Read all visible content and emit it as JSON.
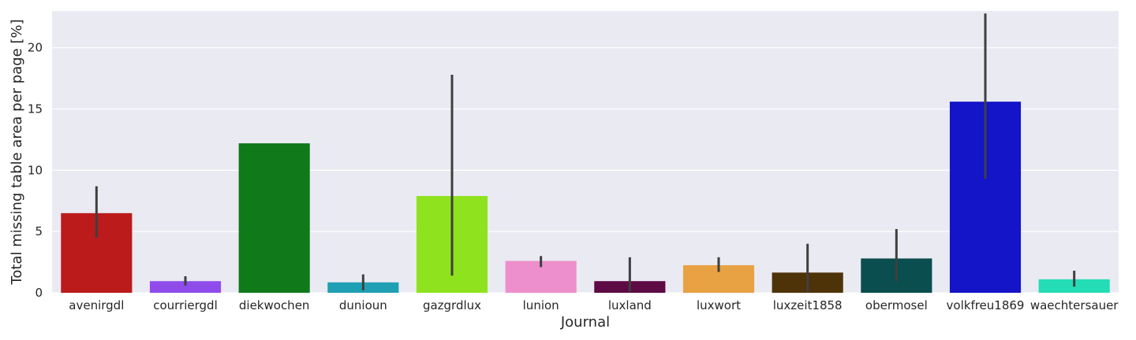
{
  "chart_data": {
    "type": "bar",
    "title": "",
    "xlabel": "Journal",
    "ylabel": "Total missing table area per page [%]",
    "ylim": [
      0,
      23
    ],
    "yticks": [
      0,
      5,
      10,
      15,
      20
    ],
    "grid": true,
    "categories": [
      "avenirgdl",
      "courriergdl",
      "diekwochen",
      "dunioun",
      "gazgrdlux",
      "lunion",
      "luxland",
      "luxwort",
      "luxzeit1858",
      "obermosel",
      "volkfreu1869",
      "waechtersauer"
    ],
    "values": [
      6.5,
      0.95,
      12.2,
      0.85,
      7.9,
      2.6,
      0.95,
      2.25,
      1.65,
      2.8,
      15.6,
      1.1
    ],
    "error_low": [
      4.5,
      0.6,
      12.2,
      0.2,
      1.4,
      2.1,
      0.1,
      1.7,
      0.1,
      0.9,
      9.3,
      0.5
    ],
    "error_high": [
      8.7,
      1.35,
      12.2,
      1.5,
      17.8,
      3.0,
      2.9,
      2.9,
      4.0,
      5.2,
      22.8,
      1.8
    ],
    "colors": [
      "#bb1b1b",
      "#8f4ceb",
      "#10791a",
      "#1f9fb4",
      "#8fe31e",
      "#ee8fcd",
      "#5d0a45",
      "#e9a243",
      "#4e3208",
      "#0a4e4f",
      "#1414c8",
      "#24dcb5"
    ]
  }
}
